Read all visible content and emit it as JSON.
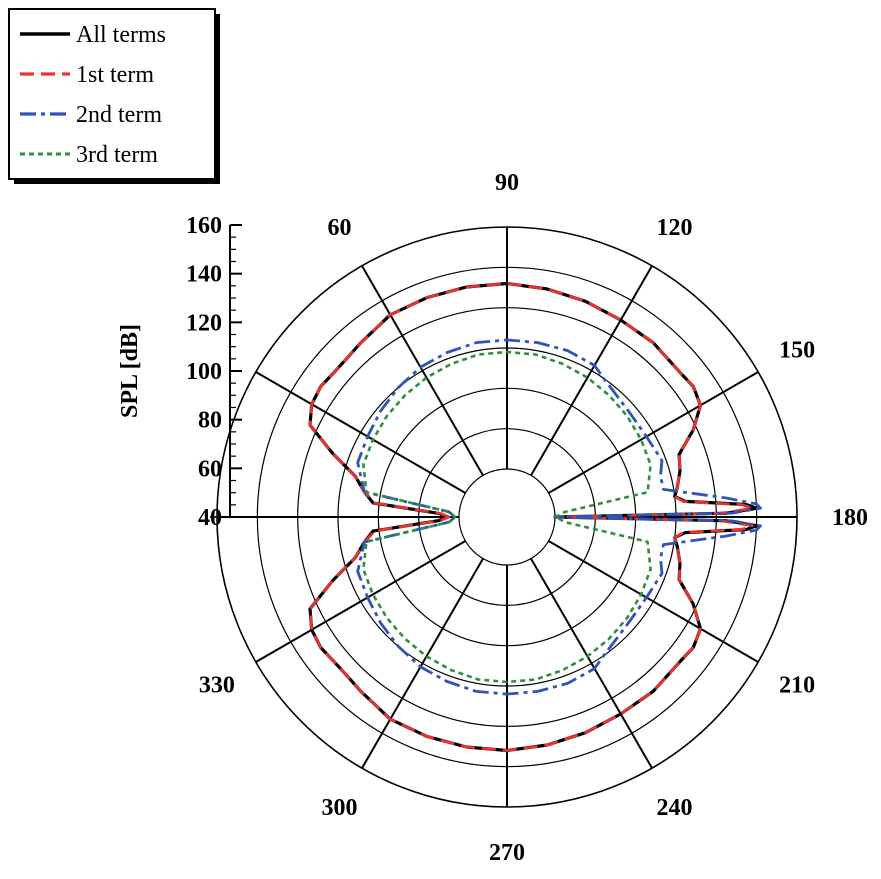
{
  "chart_data": {
    "type": "polar",
    "title": "",
    "ylabel": "SPL [dB]",
    "angle_unit": "deg",
    "angle_ticks": [
      90,
      120,
      150,
      180,
      210,
      240,
      270,
      300,
      330,
      60
    ],
    "angle_tick_labels": [
      "90",
      "120",
      "150",
      "180",
      "210",
      "240",
      "270",
      "300",
      "330",
      "60"
    ],
    "radial_range": [
      40,
      160
    ],
    "radial_ticks": [
      40,
      60,
      80,
      100,
      120,
      140,
      160
    ],
    "radial_tick_labels": [
      "40",
      "60",
      "80",
      "100",
      "120",
      "140",
      "160"
    ],
    "grid": true,
    "legend_position": "top-left",
    "series": [
      {
        "name": "All terms",
        "color": "#000000",
        "dash": "solid",
        "angles_deg": [
          0,
          3,
          6,
          10,
          15,
          20,
          25,
          30,
          35,
          40,
          45,
          50,
          55,
          60,
          70,
          80,
          90,
          100,
          110,
          120,
          130,
          140,
          145,
          150,
          155,
          160,
          165,
          170,
          173,
          175,
          177,
          178,
          179,
          180
        ],
        "spl_db": [
          46,
          50,
          83,
          88,
          94,
          108,
          124,
          128,
          129,
          128,
          128,
          129,
          130,
          132,
          132,
          132,
          132,
          131,
          130,
          129,
          129,
          128,
          129,
          127,
          118,
          107,
          105,
          102,
          100,
          105,
          135,
          140,
          125,
          40
        ]
      },
      {
        "name": "1st term",
        "color": "#e8322d",
        "dash": "dash",
        "angles_deg": [
          0,
          3,
          6,
          10,
          15,
          20,
          25,
          30,
          35,
          40,
          45,
          50,
          55,
          60,
          70,
          80,
          90,
          100,
          110,
          120,
          130,
          140,
          145,
          150,
          155,
          160,
          165,
          170,
          173,
          175,
          177,
          178,
          179,
          180
        ],
        "spl_db": [
          45,
          49,
          82,
          88,
          94,
          108,
          124,
          128,
          129,
          128,
          128,
          129,
          130,
          132,
          132,
          132,
          132,
          131,
          130,
          129,
          129,
          128,
          129,
          127,
          118,
          107,
          105,
          102,
          100,
          104,
          133,
          138,
          122,
          40
        ]
      },
      {
        "name": "2nd term",
        "color": "#2f54b8",
        "dash": "dashdot",
        "angles_deg": [
          0,
          5,
          10,
          20,
          30,
          40,
          50,
          60,
          70,
          80,
          90,
          100,
          110,
          120,
          125,
          130,
          140,
          150,
          160,
          165,
          170,
          175,
          177,
          178,
          179,
          180
        ],
        "spl_db": [
          42,
          45,
          88,
          95,
          96,
          98,
          100,
          102,
          103,
          104,
          104,
          104,
          104,
          103,
          100,
          98,
          96,
          96,
          98,
          95,
          95,
          125,
          140,
          142,
          128,
          40
        ]
      },
      {
        "name": "3rd term",
        "color": "#2e8f3c",
        "dash": "dot",
        "angles_deg": [
          0,
          5,
          10,
          20,
          30,
          40,
          50,
          60,
          70,
          80,
          90,
          100,
          110,
          120,
          130,
          140,
          150,
          160,
          170,
          175,
          178,
          180
        ],
        "spl_db": [
          42,
          45,
          87,
          92,
          93,
          94,
          95,
          96,
          97,
          98,
          98,
          98,
          97,
          96,
          95,
          94,
          93,
          92,
          87,
          45,
          42,
          40
        ]
      }
    ]
  }
}
